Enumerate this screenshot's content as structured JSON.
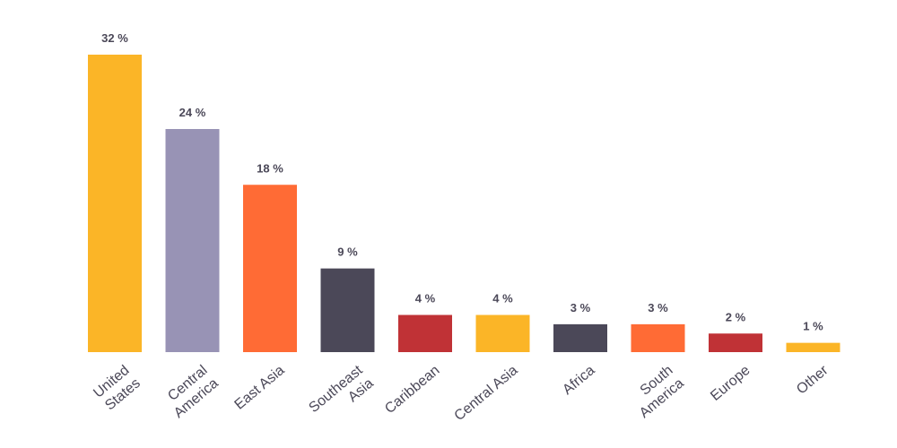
{
  "chart_data": {
    "type": "bar",
    "categories": [
      "United States",
      "Central America",
      "East Asia",
      "Southeast Asia",
      "Caribbean",
      "Central Asia",
      "Africa",
      "South America",
      "Europe",
      "Other"
    ],
    "values": [
      32,
      24,
      18,
      9,
      4,
      4,
      3,
      3,
      2,
      1
    ],
    "value_labels": [
      "32 %",
      "24 %",
      "18 %",
      "9 %",
      "4 %",
      "4 %",
      "3 %",
      "3 %",
      "2 %",
      "1 %"
    ],
    "colors": [
      "#fbb527",
      "#9893b5",
      "#ff6b35",
      "#4b4858",
      "#c03236",
      "#fbb527",
      "#4b4858",
      "#ff6b35",
      "#c03236",
      "#fbb527"
    ]
  }
}
